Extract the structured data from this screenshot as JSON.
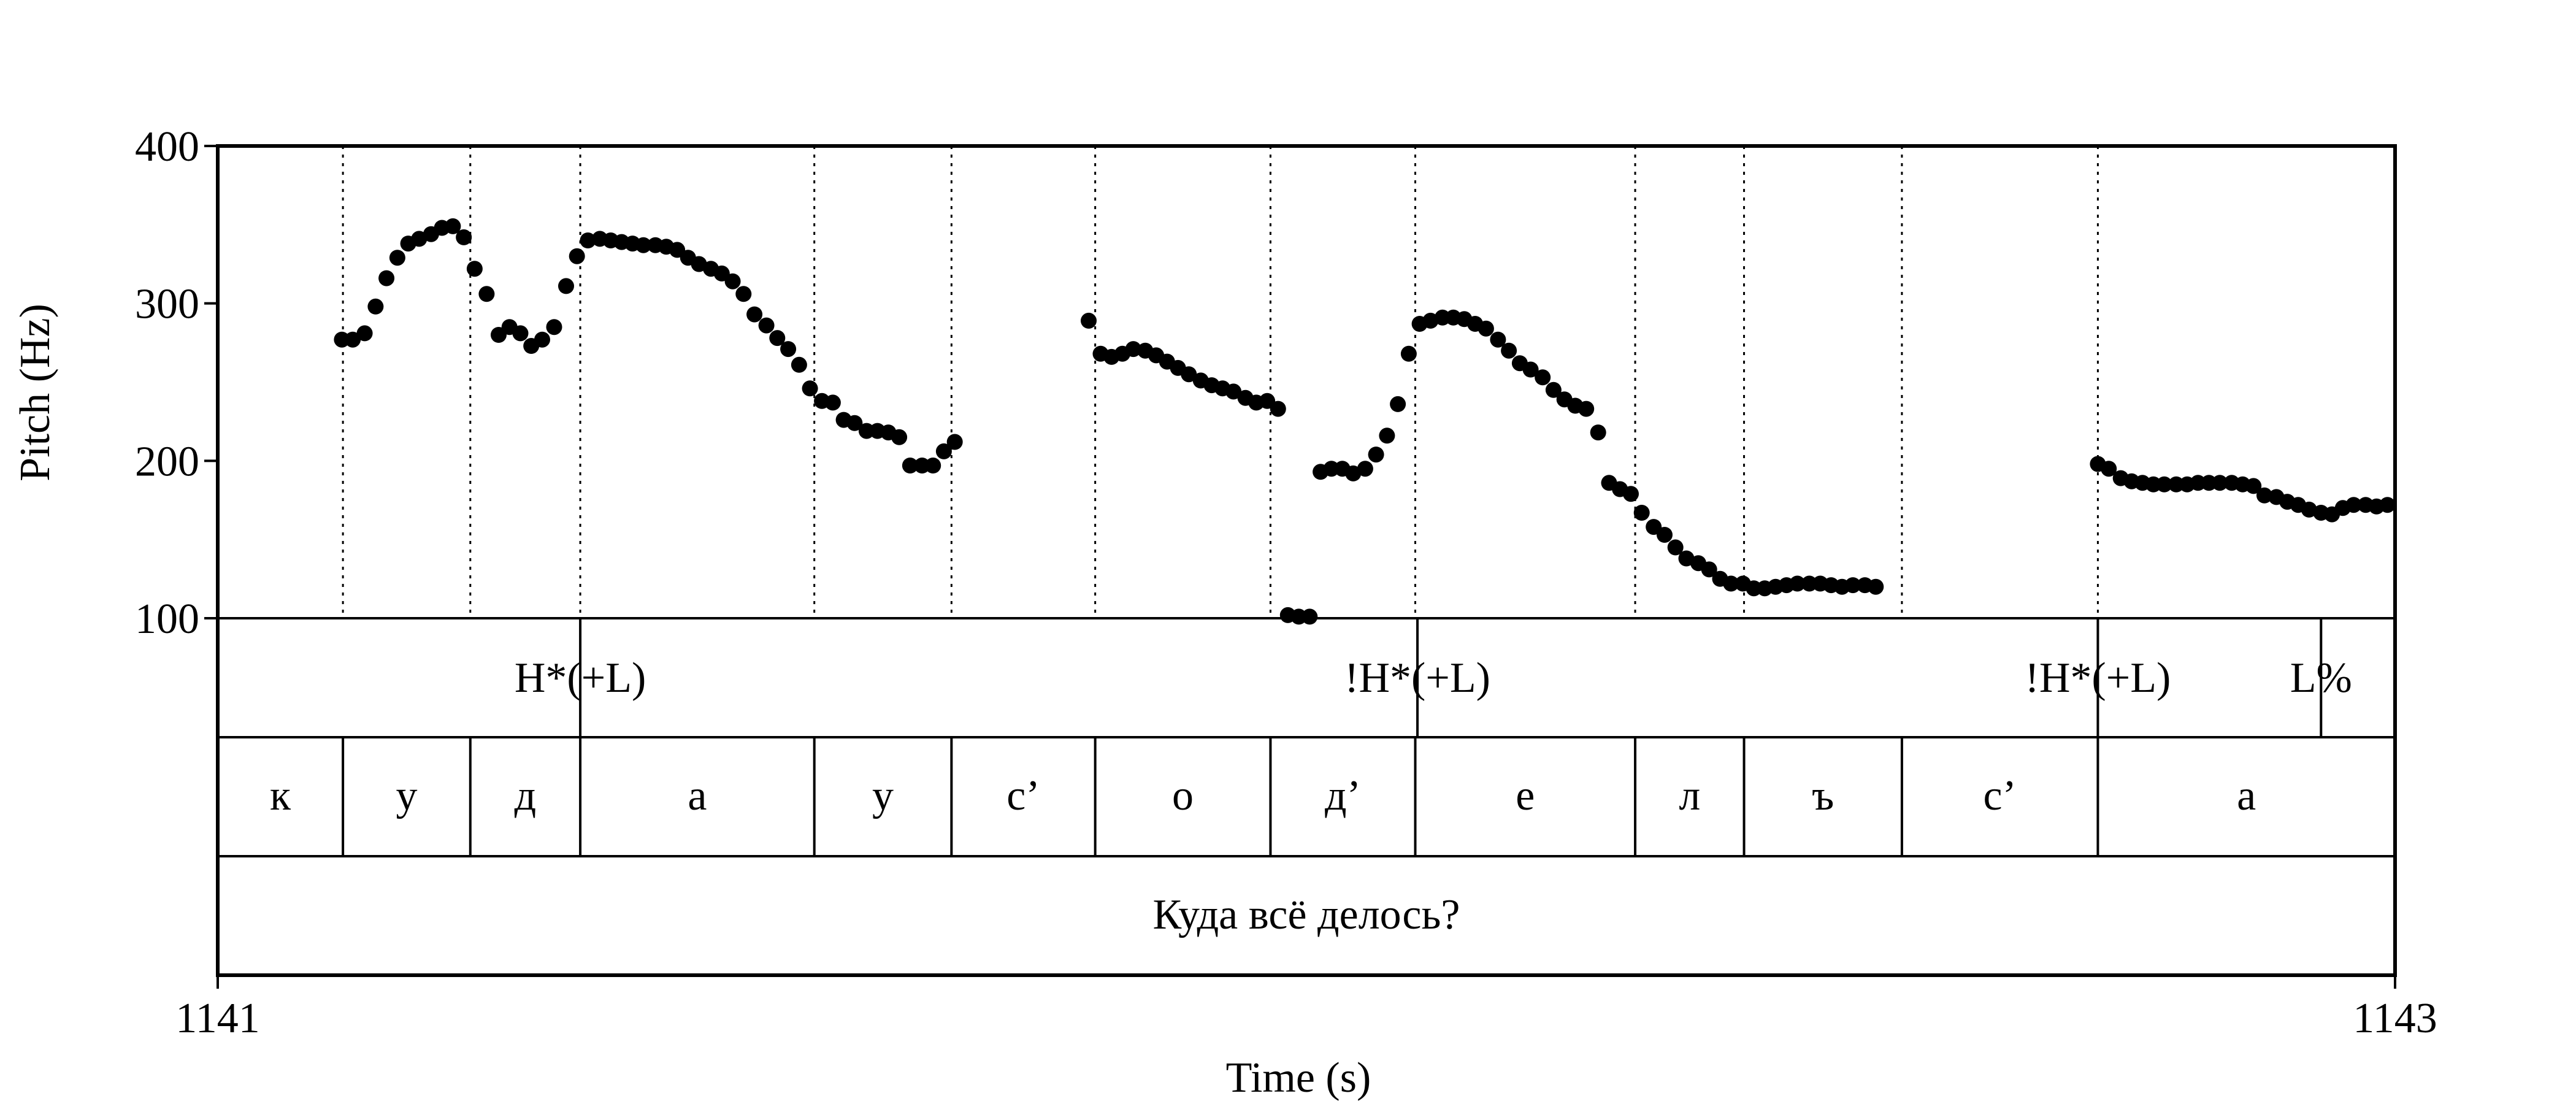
{
  "chart_data": {
    "type": "scatter",
    "xlabel": "Time (s)",
    "ylabel": "Pitch (Hz)",
    "x_unit": "s",
    "y_unit": "Hz",
    "xlim": [
      1141,
      1143
    ],
    "ylim": [
      100,
      400
    ],
    "x_ticks": [
      "1141",
      "1143"
    ],
    "y_ticks": [
      "100",
      "200",
      "300",
      "400"
    ],
    "grid": false,
    "legend": "none",
    "marker_color": "#000000",
    "segment_boundaries": [
      1141.115,
      1141.232,
      1141.333,
      1141.548,
      1141.674,
      1141.806,
      1141.967,
      1142.1,
      1142.302,
      1142.402,
      1142.547,
      1142.727,
      1143.0
    ],
    "series": [
      {
        "values": [
          [
            1141.114,
            277
          ],
          [
            1141.124,
            277
          ],
          [
            1141.135,
            281
          ],
          [
            1141.145,
            298
          ],
          [
            1141.155,
            316
          ],
          [
            1141.165,
            329
          ],
          [
            1141.175,
            338
          ],
          [
            1141.185,
            341
          ],
          [
            1141.196,
            344
          ],
          [
            1141.206,
            348
          ],
          [
            1141.216,
            349
          ],
          [
            1141.226,
            342
          ],
          [
            1141.236,
            322
          ],
          [
            1141.247,
            306
          ],
          [
            1141.258,
            280
          ],
          [
            1141.268,
            285
          ],
          [
            1141.278,
            281
          ],
          [
            1141.288,
            273
          ],
          [
            1141.298,
            277
          ],
          [
            1141.309,
            285
          ],
          [
            1141.32,
            311
          ],
          [
            1141.33,
            330
          ],
          [
            1141.34,
            340
          ],
          [
            1141.351,
            341
          ],
          [
            1141.361,
            340
          ],
          [
            1141.371,
            339
          ],
          [
            1141.381,
            338
          ],
          [
            1141.391,
            337
          ],
          [
            1141.402,
            337
          ],
          [
            1141.412,
            336
          ],
          [
            1141.422,
            334
          ],
          [
            1141.432,
            329
          ],
          [
            1141.442,
            325
          ],
          [
            1141.453,
            322
          ],
          [
            1141.463,
            319
          ],
          [
            1141.473,
            314
          ],
          [
            1141.483,
            306
          ],
          [
            1141.493,
            293
          ],
          [
            1141.504,
            286
          ],
          [
            1141.514,
            278
          ],
          [
            1141.524,
            271
          ],
          [
            1141.534,
            261
          ],
          [
            1141.544,
            246
          ],
          [
            1141.555,
            238
          ],
          [
            1141.565,
            237
          ],
          [
            1141.575,
            226
          ],
          [
            1141.585,
            224
          ],
          [
            1141.596,
            219
          ],
          [
            1141.606,
            219
          ],
          [
            1141.616,
            218
          ],
          [
            1141.626,
            215
          ],
          [
            1141.636,
            197
          ],
          [
            1141.647,
            197
          ],
          [
            1141.657,
            197
          ],
          [
            1141.667,
            206
          ],
          [
            1141.677,
            212
          ],
          [
            1141.8,
            289
          ],
          [
            1141.811,
            268
          ],
          [
            1141.821,
            266
          ],
          [
            1141.831,
            268
          ],
          [
            1141.841,
            271
          ],
          [
            1141.852,
            270
          ],
          [
            1141.862,
            267
          ],
          [
            1141.872,
            263
          ],
          [
            1141.882,
            259
          ],
          [
            1141.892,
            255
          ],
          [
            1141.903,
            251
          ],
          [
            1141.913,
            248
          ],
          [
            1141.923,
            246
          ],
          [
            1141.933,
            244
          ],
          [
            1141.944,
            240
          ],
          [
            1141.954,
            237
          ],
          [
            1141.964,
            238
          ],
          [
            1141.974,
            233
          ],
          [
            1141.983,
            102
          ],
          [
            1141.993,
            101
          ],
          [
            1142.003,
            101
          ],
          [
            1142.013,
            193
          ],
          [
            1142.023,
            195
          ],
          [
            1142.033,
            195
          ],
          [
            1142.043,
            192
          ],
          [
            1142.054,
            195
          ],
          [
            1142.064,
            204
          ],
          [
            1142.074,
            216
          ],
          [
            1142.084,
            236
          ],
          [
            1142.094,
            268
          ],
          [
            1142.104,
            287
          ],
          [
            1142.114,
            289
          ],
          [
            1142.125,
            291
          ],
          [
            1142.135,
            291
          ],
          [
            1142.145,
            290
          ],
          [
            1142.155,
            287
          ],
          [
            1142.165,
            284
          ],
          [
            1142.176,
            277
          ],
          [
            1142.186,
            270
          ],
          [
            1142.196,
            262
          ],
          [
            1142.206,
            258
          ],
          [
            1142.217,
            253
          ],
          [
            1142.227,
            245
          ],
          [
            1142.237,
            239
          ],
          [
            1142.247,
            235
          ],
          [
            1142.257,
            233
          ],
          [
            1142.268,
            218
          ],
          [
            1142.278,
            186
          ],
          [
            1142.288,
            182
          ],
          [
            1142.298,
            179
          ],
          [
            1142.308,
            167
          ],
          [
            1142.319,
            158
          ],
          [
            1142.329,
            153
          ],
          [
            1142.339,
            145
          ],
          [
            1142.349,
            138
          ],
          [
            1142.36,
            135
          ],
          [
            1142.37,
            131
          ],
          [
            1142.38,
            125
          ],
          [
            1142.39,
            122
          ],
          [
            1142.401,
            122
          ],
          [
            1142.411,
            119
          ],
          [
            1142.421,
            119
          ],
          [
            1142.431,
            120
          ],
          [
            1142.441,
            121
          ],
          [
            1142.451,
            122
          ],
          [
            1142.462,
            122
          ],
          [
            1142.472,
            122
          ],
          [
            1142.482,
            121
          ],
          [
            1142.492,
            120
          ],
          [
            1142.502,
            121
          ],
          [
            1142.513,
            121
          ],
          [
            1142.523,
            120
          ],
          [
            1142.727,
            198
          ],
          [
            1142.737,
            195
          ],
          [
            1142.748,
            189
          ],
          [
            1142.758,
            187
          ],
          [
            1142.768,
            186
          ],
          [
            1142.778,
            185
          ],
          [
            1142.788,
            185
          ],
          [
            1142.799,
            185
          ],
          [
            1142.809,
            185
          ],
          [
            1142.819,
            186
          ],
          [
            1142.829,
            186
          ],
          [
            1142.839,
            186
          ],
          [
            1142.85,
            186
          ],
          [
            1142.86,
            185
          ],
          [
            1142.87,
            184
          ],
          [
            1142.88,
            178
          ],
          [
            1142.891,
            177
          ],
          [
            1142.901,
            174
          ],
          [
            1142.911,
            172
          ],
          [
            1142.921,
            169
          ],
          [
            1142.932,
            167
          ],
          [
            1142.942,
            166
          ],
          [
            1142.952,
            170
          ],
          [
            1142.962,
            172
          ],
          [
            1142.973,
            172
          ],
          [
            1142.983,
            171
          ],
          [
            1142.993,
            172
          ]
        ]
      }
    ],
    "tiers": [
      {
        "name": "tones",
        "points": [
          {
            "time": 1141.333,
            "label": "H*(+L)"
          },
          {
            "time": 1142.102,
            "label": "!H*(+L)"
          },
          {
            "time": 1142.727,
            "label": "!H*(+L)"
          },
          {
            "time": 1142.932,
            "label": "L%"
          }
        ]
      },
      {
        "name": "segments",
        "intervals": [
          {
            "start": 1141.0,
            "end": 1141.115,
            "label": "к"
          },
          {
            "start": 1141.115,
            "end": 1141.232,
            "label": "у"
          },
          {
            "start": 1141.232,
            "end": 1141.333,
            "label": "д"
          },
          {
            "start": 1141.333,
            "end": 1141.548,
            "label": "а"
          },
          {
            "start": 1141.548,
            "end": 1141.674,
            "label": "у"
          },
          {
            "start": 1141.674,
            "end": 1141.806,
            "label": "с’"
          },
          {
            "start": 1141.806,
            "end": 1141.967,
            "label": "о"
          },
          {
            "start": 1141.967,
            "end": 1142.1,
            "label": "д’"
          },
          {
            "start": 1142.1,
            "end": 1142.302,
            "label": "е"
          },
          {
            "start": 1142.302,
            "end": 1142.402,
            "label": "л"
          },
          {
            "start": 1142.402,
            "end": 1142.547,
            "label": "ъ"
          },
          {
            "start": 1142.547,
            "end": 1142.727,
            "label": "с’"
          },
          {
            "start": 1142.727,
            "end": 1143.0,
            "label": "а"
          }
        ]
      },
      {
        "name": "sentence",
        "intervals": [
          {
            "start": 1141.0,
            "end": 1143.0,
            "label": "Куда всё делось?"
          }
        ]
      }
    ]
  }
}
